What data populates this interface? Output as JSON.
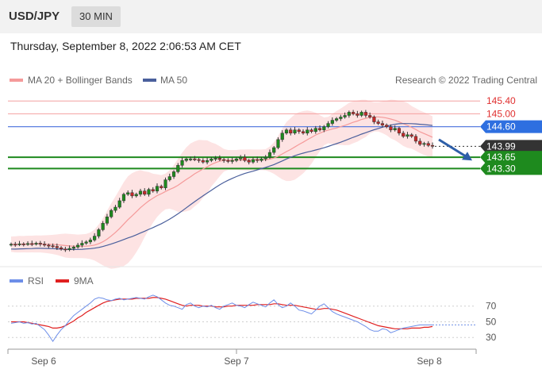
{
  "header": {
    "symbol": "USD/JPY",
    "timeframe": "30 MIN"
  },
  "datetime": "Thursday, September 8, 2022 2:06:53 AM CET",
  "legend": {
    "ma20": "MA 20 + Bollinger Bands",
    "ma50": "MA 50",
    "credit": "Research © 2022 Trading Central"
  },
  "rsi_legend": {
    "rsi": "RSI",
    "ma9": "9MA"
  },
  "colors": {
    "ma20": "#f59a9a",
    "ma50": "#4a5f9c",
    "band": "#fde0e0",
    "resistance": "#f4a0a0",
    "pivot_line": "#5b7fe0",
    "pivot_tag": "#2e6fe0",
    "support": "#1e8a1e",
    "current": "#333333",
    "rsi": "#6d8ee8",
    "rsi_ma": "#e02020",
    "arrow": "#2e5fa8"
  },
  "chart_data": [
    {
      "type": "candlestick",
      "x_ticks": [
        "Sep 6",
        "Sep 7",
        "Sep 8"
      ],
      "ylim": [
        140.4,
        145.75
      ],
      "levels": [
        {
          "value": "145.40",
          "role": "resistance"
        },
        {
          "value": "145.00",
          "role": "resistance"
        },
        {
          "value": "144.60",
          "role": "pivot"
        },
        {
          "value": "143.99",
          "role": "current"
        },
        {
          "value": "143.65",
          "role": "support"
        },
        {
          "value": "143.30",
          "role": "support"
        }
      ],
      "close": [
        140.95,
        140.94,
        140.96,
        140.95,
        140.97,
        140.96,
        140.98,
        140.95,
        140.92,
        140.9,
        140.88,
        140.84,
        140.8,
        140.78,
        140.82,
        140.86,
        140.92,
        140.98,
        141.02,
        141.08,
        141.2,
        141.4,
        141.6,
        141.8,
        142.0,
        142.1,
        142.3,
        142.5,
        142.55,
        142.45,
        142.5,
        142.6,
        142.5,
        142.65,
        142.6,
        142.75,
        142.7,
        142.95,
        143.05,
        143.2,
        143.4,
        143.55,
        143.6,
        143.6,
        143.58,
        143.55,
        143.5,
        143.55,
        143.6,
        143.62,
        143.58,
        143.55,
        143.52,
        143.55,
        143.6,
        143.65,
        143.55,
        143.5,
        143.58,
        143.55,
        143.6,
        143.65,
        143.8,
        143.95,
        144.2,
        144.4,
        144.5,
        144.4,
        144.5,
        144.45,
        144.4,
        144.5,
        144.45,
        144.55,
        144.5,
        144.6,
        144.7,
        144.8,
        144.85,
        144.9,
        144.95,
        145.05,
        145.0,
        144.95,
        145.05,
        144.95,
        144.9,
        144.75,
        144.7,
        144.65,
        144.6,
        144.5,
        144.55,
        144.4,
        144.3,
        144.35,
        144.3,
        144.15,
        144.05,
        144.08,
        144.02,
        143.99
      ],
      "bands": {
        "upper_max": 145.2,
        "lower_min": 140.6
      },
      "ma20_end": 144.4,
      "ma50_end": 144.0,
      "arrow": {
        "from": 144.2,
        "to": 143.55
      }
    },
    {
      "type": "line",
      "name": "RSI panel",
      "y_ticks": [
        "70",
        "50",
        "30"
      ],
      "ylim": [
        15,
        90
      ],
      "rsi": [
        48,
        49,
        50,
        48,
        49,
        47,
        48,
        44,
        40,
        33,
        25,
        33,
        40,
        45,
        52,
        58,
        62,
        66,
        70,
        74,
        79,
        81,
        80,
        78,
        77,
        79,
        80,
        78,
        79,
        80,
        81,
        80,
        79,
        82,
        84,
        82,
        78,
        74,
        71,
        70,
        68,
        66,
        72,
        74,
        70,
        68,
        70,
        69,
        71,
        68,
        66,
        70,
        72,
        74,
        71,
        70,
        68,
        72,
        75,
        73,
        71,
        69,
        74,
        78,
        72,
        68,
        70,
        74,
        70,
        65,
        64,
        62,
        60,
        65,
        70,
        73,
        68,
        63,
        60,
        58,
        56,
        54,
        52,
        50,
        47,
        44,
        40,
        38,
        38,
        41,
        40,
        36,
        38,
        40,
        42,
        43,
        44,
        45,
        46,
        46,
        46,
        46
      ],
      "ma9": [
        50,
        50,
        50,
        50,
        49,
        48,
        47,
        46,
        45,
        44,
        42,
        42,
        43,
        45,
        48,
        51,
        55,
        58,
        62,
        65,
        68,
        71,
        74,
        76,
        77,
        78,
        79,
        79,
        79,
        79,
        80,
        80,
        80,
        80,
        81,
        81,
        80,
        79,
        77,
        75,
        73,
        71,
        70,
        71,
        71,
        71,
        70,
        70,
        70,
        69,
        69,
        69,
        70,
        70,
        71,
        71,
        71,
        71,
        71,
        72,
        72,
        72,
        72,
        73,
        73,
        72,
        71,
        71,
        71,
        70,
        69,
        68,
        67,
        66,
        66,
        67,
        67,
        66,
        65,
        63,
        61,
        59,
        57,
        55,
        53,
        51,
        49,
        47,
        45,
        44,
        43,
        42,
        41,
        41,
        41,
        41,
        42,
        42,
        42,
        43,
        43,
        44
      ]
    }
  ]
}
